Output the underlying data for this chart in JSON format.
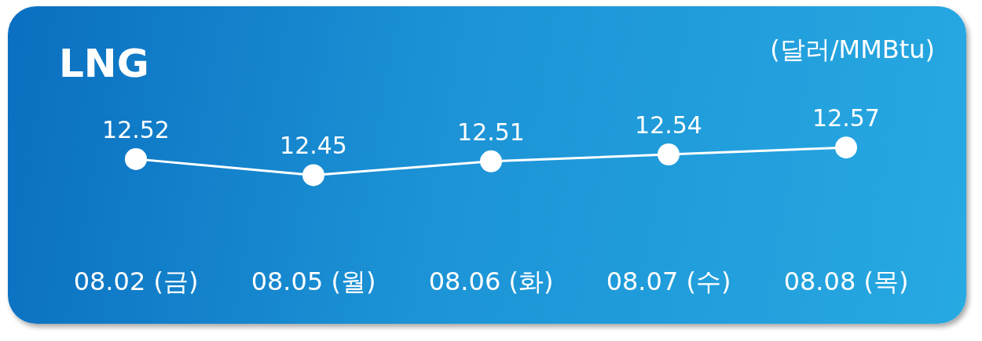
{
  "chart_data": {
    "type": "line",
    "title": "LNG",
    "ylabel": "(달러/MMBtu)",
    "categories": [
      "08.02 (금)",
      "08.05 (월)",
      "08.06 (화)",
      "08.07 (수)",
      "08.08 (목)"
    ],
    "series": [
      {
        "color": "#ffffff",
        "values": [
          12.52,
          12.45,
          12.51,
          12.54,
          12.57
        ]
      }
    ],
    "data_labels": true,
    "marker": "circle",
    "line_style": "solid",
    "grid": false,
    "legend": false
  }
}
